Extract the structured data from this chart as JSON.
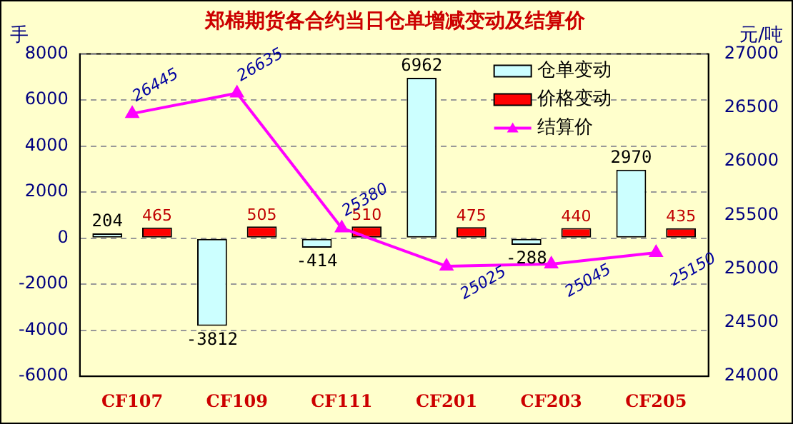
{
  "chart_data": {
    "type": "bar",
    "title": "郑棉期货各合约当日仓单增减变动及结算价",
    "ylabel": "手",
    "y2label": "元/吨",
    "categories": [
      "CF107",
      "CF109",
      "CF111",
      "CF201",
      "CF203",
      "CF205"
    ],
    "series": [
      {
        "name": "仓单变动",
        "color": "#ccffff",
        "values": [
          204,
          -3812,
          -414,
          6962,
          -288,
          2970
        ]
      },
      {
        "name": "价格变动",
        "color": "#ff0000",
        "values": [
          465,
          505,
          510,
          475,
          440,
          435
        ]
      },
      {
        "name": "结算价",
        "type": "line",
        "axis": "y2",
        "color": "#ff00ff",
        "marker": "triangle",
        "values": [
          26445,
          26635,
          25380,
          25025,
          25045,
          25150
        ]
      }
    ],
    "ylim": [
      -6000,
      8000
    ],
    "yticks": [
      -6000,
      -4000,
      -2000,
      0,
      2000,
      4000,
      6000,
      8000
    ],
    "y2lim": [
      24000,
      27000
    ],
    "y2ticks": [
      24000,
      24500,
      25000,
      25500,
      26000,
      26500,
      27000
    ],
    "grid": "y",
    "legend": "top right",
    "data_labels": true
  }
}
